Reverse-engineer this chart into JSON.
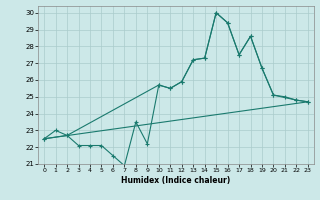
{
  "xlabel": "Humidex (Indice chaleur)",
  "background_color": "#cce8e8",
  "grid_color": "#aacccc",
  "line_color": "#1a7a6e",
  "xlim": [
    -0.5,
    23.5
  ],
  "ylim": [
    21,
    30.4
  ],
  "xticks": [
    0,
    1,
    2,
    3,
    4,
    5,
    6,
    7,
    8,
    9,
    10,
    11,
    12,
    13,
    14,
    15,
    16,
    17,
    18,
    19,
    20,
    21,
    22,
    23
  ],
  "yticks": [
    21,
    22,
    23,
    24,
    25,
    26,
    27,
    28,
    29,
    30
  ],
  "line1_x": [
    0,
    1,
    2,
    3,
    4,
    5,
    6,
    7,
    8,
    9,
    10,
    11,
    12,
    13,
    14,
    15,
    16,
    17,
    18,
    19,
    20,
    21,
    22,
    23
  ],
  "line1_y": [
    22.5,
    23.0,
    22.7,
    22.1,
    22.1,
    22.1,
    21.5,
    20.9,
    23.5,
    22.2,
    25.7,
    25.5,
    25.9,
    27.2,
    27.3,
    30.0,
    29.4,
    27.5,
    28.6,
    26.7,
    25.1,
    25.0,
    24.8,
    24.7
  ],
  "line2_x": [
    0,
    2,
    10,
    11,
    12,
    13,
    14,
    15,
    16,
    17,
    18,
    19,
    20,
    22,
    23
  ],
  "line2_y": [
    22.5,
    22.7,
    25.7,
    25.5,
    25.9,
    27.2,
    27.3,
    30.0,
    29.4,
    27.5,
    28.6,
    26.7,
    25.1,
    24.8,
    24.7
  ],
  "line3_x": [
    0,
    23
  ],
  "line3_y": [
    22.5,
    24.7
  ]
}
